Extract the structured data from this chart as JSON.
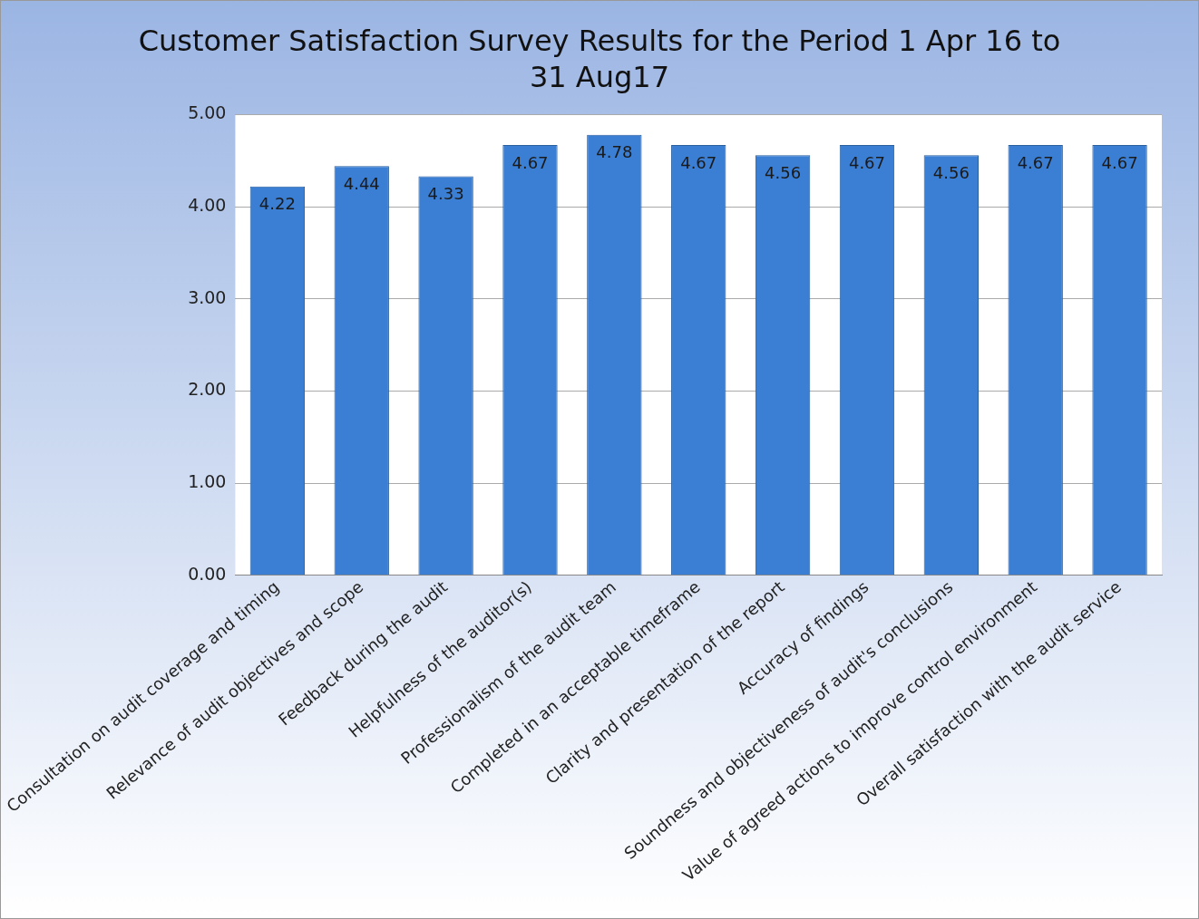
{
  "chart_data": {
    "type": "bar",
    "title": "Customer Satisfaction Survey Results for the Period 1 Apr 16 to 31 Aug17",
    "categories": [
      "Consultation on audit coverage and timing",
      "Relevance of audit objectives and scope",
      "Feedback during the audit",
      "Helpfulness of the auditor(s)",
      "Professionalism of the audit team",
      "Completed in an acceptable timeframe",
      "Clarity and presentation of the report",
      "Accuracy of findings",
      "Soundness and objectiveness of audit's conclusions",
      "Value of agreed actions to improve control environment",
      "Overall satisfaction with the audit service"
    ],
    "values": [
      4.22,
      4.44,
      4.33,
      4.67,
      4.78,
      4.67,
      4.56,
      4.67,
      4.56,
      4.67,
      4.67
    ],
    "color": "#3b7fd4",
    "ylim": [
      0,
      5
    ],
    "yticks": [
      {
        "value": 0,
        "label": "0.00"
      },
      {
        "value": 1,
        "label": "1.00"
      },
      {
        "value": 2,
        "label": "2.00"
      },
      {
        "value": 3,
        "label": "3.00"
      },
      {
        "value": 4,
        "label": "4.00"
      },
      {
        "value": 5,
        "label": "5.00"
      }
    ],
    "grid": "y",
    "data_labels": true,
    "legend": false
  }
}
